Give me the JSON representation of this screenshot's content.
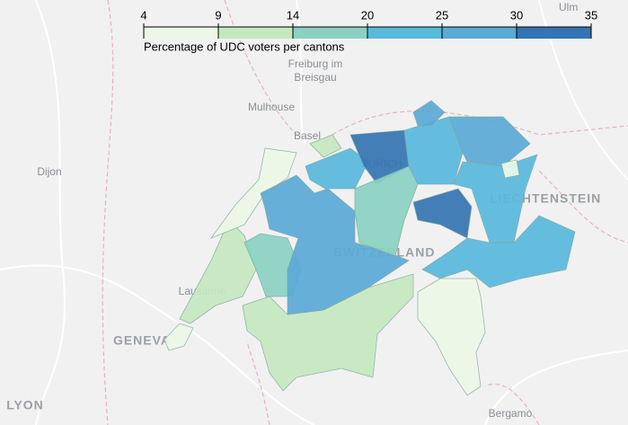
{
  "map_data": {
    "legend": {
      "title": "Percentage of UDC voters per cantons",
      "ticks": [
        4,
        9,
        14,
        20,
        25,
        30,
        35
      ],
      "colors": [
        "#edf7e7",
        "#c6e8c0",
        "#8ad1c2",
        "#58b9dc",
        "#5aa9d6",
        "#3574b2"
      ]
    },
    "values": [
      8,
      12,
      8,
      13,
      17,
      27,
      22,
      33,
      19,
      24,
      28,
      24,
      32,
      23,
      7,
      30,
      12,
      6
    ],
    "place_labels": [
      "Ulm",
      "Freiburg im",
      "Breisgau",
      "Mulhouse",
      "Basel",
      "Dijon",
      "ZURICH",
      "LIECHTENSTEIN",
      "SWITZERLAND",
      "Lausanne",
      "GENEVA",
      "LYON",
      "Bergamo"
    ]
  }
}
